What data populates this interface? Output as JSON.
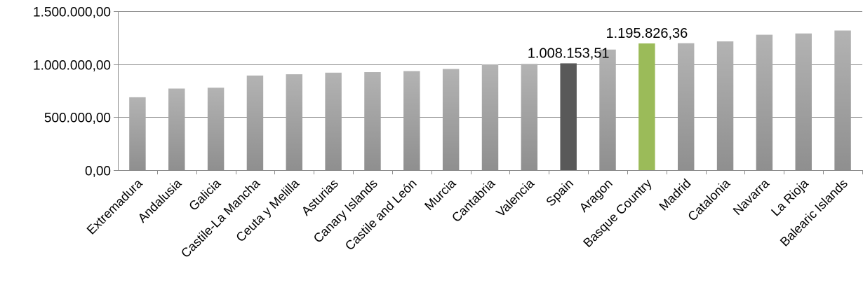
{
  "chart_data": {
    "type": "bar",
    "title": "",
    "xlabel": "",
    "ylabel": "",
    "ylim": [
      0,
      1500000
    ],
    "yticks": [
      0,
      500000,
      1000000,
      1500000
    ],
    "ytick_labels": [
      "0,00",
      "500.000,00",
      "1.000.000,00",
      "1.500.000,00"
    ],
    "grid": "horizontal",
    "legend": "none",
    "categories": [
      "Extremadura",
      "Andalusia",
      "Galicia",
      "Castile-La Mancha",
      "Ceuta y Melilla",
      "Asturias",
      "Canary Islands",
      "Castile and León",
      "Murcia",
      "Cantabria",
      "Valencia",
      "Spain",
      "Aragon",
      "Basque Country",
      "Madrid",
      "Catalonia",
      "Navarra",
      "La Rioja",
      "Balearic Islands"
    ],
    "values": [
      688000,
      770000,
      778000,
      893000,
      905000,
      920000,
      925000,
      935000,
      955000,
      998000,
      1003000,
      1008153.51,
      1138000,
      1195826.36,
      1198000,
      1215000,
      1278000,
      1290000,
      1318000
    ],
    "colors": {
      "default_bar": "#a6a6a6",
      "highlight_spain": "#595959",
      "highlight_basque_country": "#9bbb59"
    },
    "bar_colors": [
      "default_bar",
      "default_bar",
      "default_bar",
      "default_bar",
      "default_bar",
      "default_bar",
      "default_bar",
      "default_bar",
      "default_bar",
      "default_bar",
      "default_bar",
      "highlight_spain",
      "default_bar",
      "highlight_basque_country",
      "default_bar",
      "default_bar",
      "default_bar",
      "default_bar",
      "default_bar"
    ],
    "data_labels": [
      {
        "category": "Spain",
        "text": "1.008.153,51"
      },
      {
        "category": "Basque Country",
        "text": "1.195.826,36"
      }
    ]
  }
}
